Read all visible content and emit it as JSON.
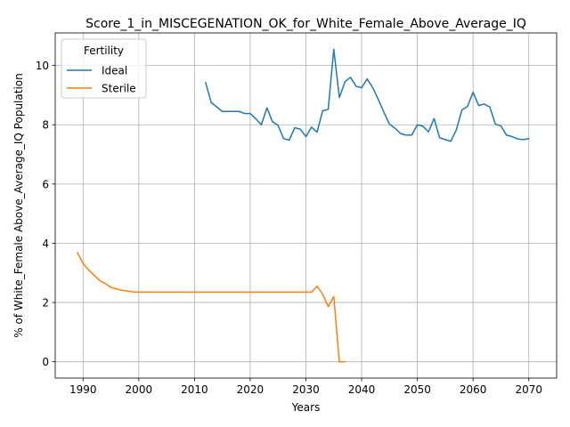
{
  "chart_data": {
    "type": "line",
    "title": "Score_1_in_MISCEGENATION_OK_for_White_Female_Above_Average_IQ",
    "xlabel": "Years",
    "ylabel": "% of White_Female Above_Average_IQ Population",
    "xlim": [
      1985,
      2075
    ],
    "ylim": [
      -0.55,
      11.1
    ],
    "xticks": [
      1990,
      2000,
      2010,
      2020,
      2030,
      2040,
      2050,
      2060,
      2070
    ],
    "yticks": [
      0,
      2,
      4,
      6,
      8,
      10
    ],
    "grid": true,
    "legend": {
      "title": "Fertility",
      "placement": "upper left"
    },
    "series": [
      {
        "name": "Ideal",
        "color": "#1f77b4",
        "x": [
          2012,
          2013,
          2014,
          2015,
          2016,
          2017,
          2018,
          2019,
          2020,
          2021,
          2022,
          2023,
          2024,
          2025,
          2026,
          2027,
          2028,
          2029,
          2030,
          2031,
          2032,
          2033,
          2034,
          2035,
          2036,
          2037,
          2038,
          2039,
          2040,
          2041,
          2042,
          2043,
          2044,
          2045,
          2046,
          2047,
          2048,
          2049,
          2050,
          2051,
          2052,
          2053,
          2054,
          2055,
          2056,
          2057,
          2058,
          2059,
          2060,
          2061,
          2062,
          2063,
          2064,
          2065,
          2066,
          2067,
          2068,
          2069,
          2070
        ],
        "y": [
          9.42,
          8.75,
          8.6,
          8.45,
          8.45,
          8.45,
          8.45,
          8.38,
          8.38,
          8.2,
          8.0,
          8.57,
          8.1,
          7.98,
          7.53,
          7.48,
          7.9,
          7.85,
          7.6,
          7.92,
          7.75,
          8.47,
          8.52,
          10.55,
          8.92,
          9.45,
          9.6,
          9.3,
          9.25,
          9.55,
          9.25,
          8.85,
          8.42,
          8.02,
          7.88,
          7.7,
          7.65,
          7.65,
          8.0,
          7.95,
          7.76,
          8.21,
          7.56,
          7.5,
          7.44,
          7.83,
          8.5,
          8.62,
          9.1,
          8.65,
          8.7,
          8.6,
          8.02,
          7.96,
          7.65,
          7.6,
          7.52,
          7.5,
          7.53
        ]
      },
      {
        "name": "Sterile",
        "color": "#ff7f0e",
        "x": [
          1989,
          1990,
          1991,
          1992,
          1993,
          1994,
          1995,
          1996,
          1997,
          1998,
          1999,
          2000,
          2005,
          2010,
          2015,
          2020,
          2025,
          2030,
          2031,
          2032,
          2033,
          2034,
          2035,
          2036,
          2037
        ],
        "y": [
          3.68,
          3.32,
          3.1,
          2.92,
          2.74,
          2.64,
          2.51,
          2.46,
          2.41,
          2.39,
          2.36,
          2.35,
          2.35,
          2.35,
          2.35,
          2.35,
          2.35,
          2.35,
          2.35,
          2.55,
          2.28,
          1.86,
          2.2,
          0.0,
          0.0
        ]
      }
    ]
  }
}
